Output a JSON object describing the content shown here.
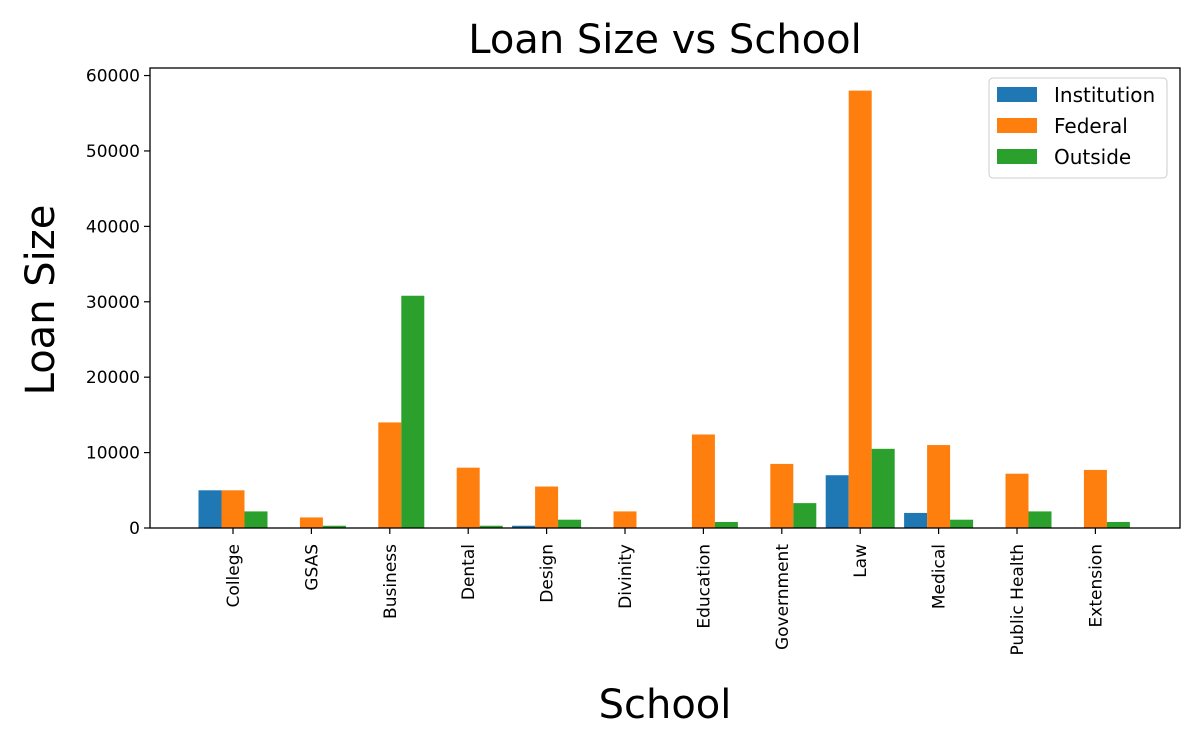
{
  "chart_data": {
    "type": "bar",
    "title": "Loan Size vs School",
    "xlabel": "School",
    "ylabel": "Loan Size",
    "ylim": [
      0,
      61000
    ],
    "yticks": [
      0,
      10000,
      20000,
      30000,
      40000,
      50000,
      60000
    ],
    "categories": [
      "College",
      "GSAS",
      "Business",
      "Dental",
      "Design",
      "Divinity",
      "Education",
      "Government",
      "Law",
      "Medical",
      "Public Health",
      "Extension"
    ],
    "series": [
      {
        "name": "Institution",
        "color": "#1f77b4",
        "values": [
          5000,
          0,
          0,
          0,
          300,
          0,
          0,
          0,
          7000,
          2000,
          0,
          0
        ]
      },
      {
        "name": "Federal",
        "color": "#ff7f0e",
        "values": [
          5000,
          1400,
          14000,
          8000,
          5500,
          2200,
          12400,
          8500,
          58000,
          11000,
          7200,
          7700
        ]
      },
      {
        "name": "Outside",
        "color": "#2ca02c",
        "values": [
          2200,
          300,
          30800,
          300,
          1100,
          0,
          800,
          3300,
          10500,
          1100,
          2200,
          800
        ]
      }
    ],
    "legend_position": "top-right",
    "grid": false
  }
}
